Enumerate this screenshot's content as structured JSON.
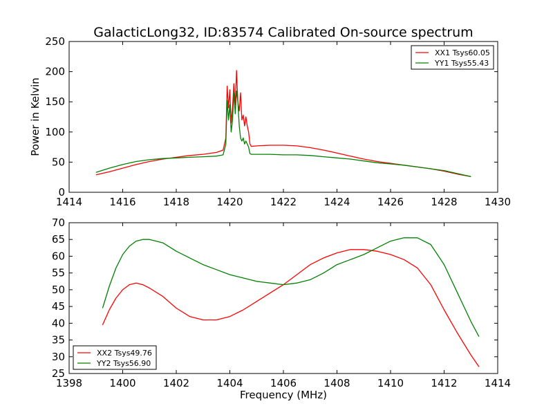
{
  "chart_data": [
    {
      "type": "line",
      "title": "GalacticLong32, ID:83574 Calibrated On-source spectrum",
      "xlabel": "",
      "ylabel": "Power in Kelvin",
      "xlim": [
        1414,
        1430
      ],
      "ylim": [
        0,
        250
      ],
      "xticks": [
        "1414",
        "1416",
        "1418",
        "1420",
        "1422",
        "1424",
        "1426",
        "1428",
        "1430"
      ],
      "yticks": [
        "0",
        "50",
        "100",
        "150",
        "200",
        "250"
      ],
      "legend_position": "top-right",
      "series": [
        {
          "name": "XX1 Tsys60.05",
          "color": "#ff0000",
          "x": [
            1415.0,
            1415.5,
            1416.0,
            1416.5,
            1417.0,
            1417.5,
            1418.0,
            1418.5,
            1419.0,
            1419.5,
            1419.75,
            1419.85,
            1419.9,
            1419.95,
            1420.0,
            1420.05,
            1420.1,
            1420.15,
            1420.2,
            1420.25,
            1420.3,
            1420.35,
            1420.4,
            1420.45,
            1420.5,
            1420.55,
            1420.6,
            1420.65,
            1420.7,
            1420.75,
            1420.8,
            1421.0,
            1421.5,
            1422.0,
            1422.5,
            1423.0,
            1423.5,
            1424.0,
            1424.5,
            1425.0,
            1425.5,
            1426.0,
            1426.5,
            1427.0,
            1427.5,
            1428.0,
            1428.5,
            1429.0
          ],
          "y": [
            29,
            34,
            40,
            46,
            51,
            55,
            58,
            61,
            63,
            66,
            70,
            90,
            176,
            140,
            170,
            115,
            140,
            180,
            145,
            202,
            150,
            135,
            165,
            120,
            128,
            110,
            125,
            110,
            100,
            80,
            76,
            77,
            78,
            78,
            77,
            74,
            70,
            65,
            60,
            55,
            51,
            48,
            45,
            42,
            39,
            35,
            30,
            26
          ]
        },
        {
          "name": "YY1 Tsys55.43",
          "color": "#008000",
          "x": [
            1415.0,
            1415.5,
            1416.0,
            1416.5,
            1417.0,
            1417.5,
            1418.0,
            1418.5,
            1419.0,
            1419.5,
            1419.75,
            1419.85,
            1419.9,
            1419.95,
            1420.0,
            1420.05,
            1420.1,
            1420.15,
            1420.2,
            1420.25,
            1420.3,
            1420.35,
            1420.4,
            1420.45,
            1420.5,
            1420.55,
            1420.6,
            1420.65,
            1420.7,
            1420.75,
            1420.8,
            1421.0,
            1421.5,
            1422.0,
            1422.5,
            1423.0,
            1423.5,
            1424.0,
            1424.5,
            1425.0,
            1425.5,
            1426.0,
            1426.5,
            1427.0,
            1427.5,
            1428.0,
            1428.5,
            1429.0
          ],
          "y": [
            33,
            40,
            46,
            51,
            54,
            56,
            57,
            58,
            59,
            60,
            62,
            80,
            152,
            120,
            145,
            100,
            120,
            165,
            130,
            168,
            150,
            110,
            90,
            85,
            90,
            80,
            85,
            80,
            75,
            64,
            63,
            63,
            63,
            62,
            62,
            61,
            59,
            57,
            55,
            52,
            49,
            47,
            45,
            42,
            39,
            36,
            31,
            26
          ]
        }
      ]
    },
    {
      "type": "line",
      "title": "",
      "xlabel": "Frequency (MHz)",
      "ylabel": "",
      "xlim": [
        1398,
        1414
      ],
      "ylim": [
        25,
        70
      ],
      "xticks": [
        "1398",
        "1400",
        "1402",
        "1404",
        "1406",
        "1408",
        "1410",
        "1412",
        "1414"
      ],
      "yticks": [
        "25",
        "30",
        "35",
        "40",
        "45",
        "50",
        "55",
        "60",
        "65",
        "70"
      ],
      "legend_position": "bottom-left",
      "series": [
        {
          "name": "XX2 Tsys49.76",
          "color": "#ff0000",
          "x": [
            1399.25,
            1399.5,
            1399.75,
            1400.0,
            1400.25,
            1400.5,
            1400.75,
            1401.0,
            1401.5,
            1402.0,
            1402.5,
            1403.0,
            1403.5,
            1404.0,
            1404.5,
            1405.0,
            1405.5,
            1406.0,
            1406.5,
            1407.0,
            1407.5,
            1408.0,
            1408.5,
            1409.0,
            1409.5,
            1410.0,
            1410.5,
            1411.0,
            1411.5,
            1412.0,
            1412.5,
            1413.0,
            1413.3
          ],
          "y": [
            39.5,
            44,
            47.5,
            50,
            51.5,
            52,
            51.5,
            50.5,
            48,
            44.5,
            42,
            41,
            41,
            42,
            44,
            46.5,
            49,
            51.5,
            54.5,
            57.5,
            59.5,
            61,
            62,
            62,
            61.5,
            60.5,
            59,
            56.5,
            51.5,
            44,
            37,
            30.5,
            27
          ]
        },
        {
          "name": "YY2 Tsys56.90",
          "color": "#008000",
          "x": [
            1399.25,
            1399.5,
            1399.75,
            1400.0,
            1400.25,
            1400.5,
            1400.75,
            1401.0,
            1401.25,
            1401.5,
            1402.0,
            1402.5,
            1403.0,
            1403.5,
            1404.0,
            1404.5,
            1405.0,
            1405.5,
            1406.0,
            1406.5,
            1407.0,
            1407.5,
            1408.0,
            1408.5,
            1409.0,
            1409.5,
            1410.0,
            1410.5,
            1411.0,
            1411.5,
            1412.0,
            1412.5,
            1413.0,
            1413.3
          ],
          "y": [
            44.5,
            51,
            56.5,
            60.5,
            63,
            64.5,
            65,
            65,
            64.5,
            64,
            61.5,
            59.5,
            57.5,
            56,
            54.5,
            53.5,
            52.5,
            52,
            51.5,
            52,
            53,
            55,
            57.5,
            59,
            60.5,
            62.5,
            64.5,
            65.5,
            65.5,
            63.5,
            57.5,
            49,
            40.5,
            36
          ]
        }
      ]
    }
  ]
}
